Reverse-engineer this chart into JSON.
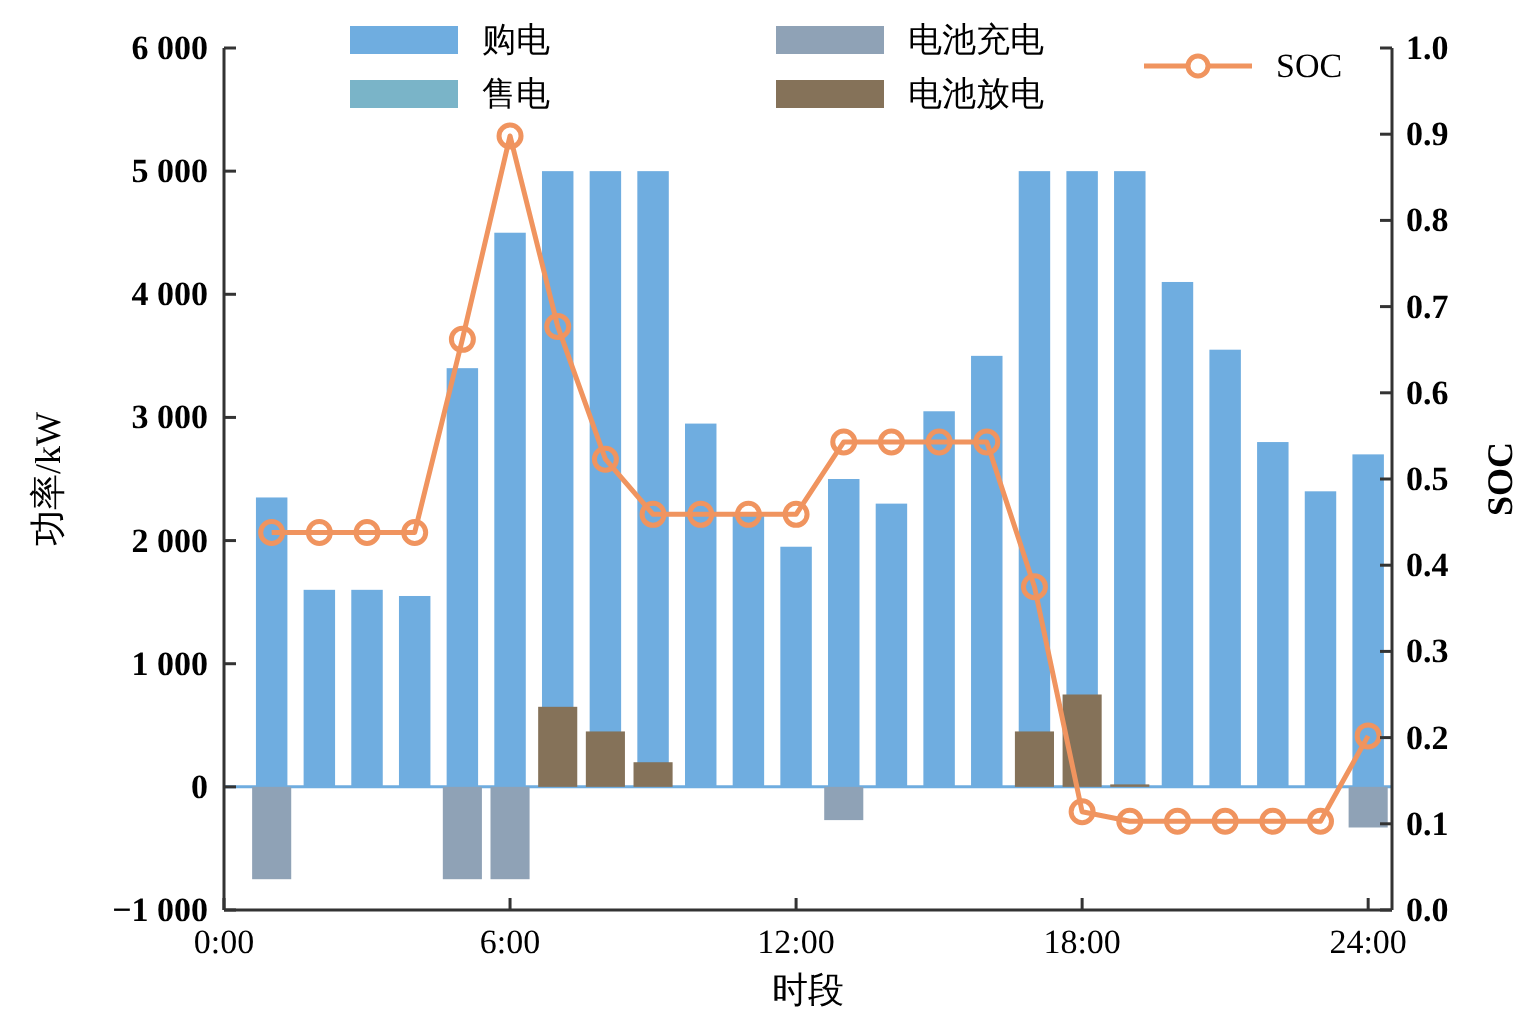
{
  "chart_data": {
    "type": "bar",
    "xlabel": "时段",
    "ylabel": "功率/kW",
    "y2label": "SOC",
    "x": [
      1,
      2,
      3,
      4,
      5,
      6,
      7,
      8,
      9,
      10,
      11,
      12,
      13,
      14,
      15,
      16,
      17,
      18,
      19,
      20,
      21,
      22,
      23,
      24
    ],
    "xlim": [
      0,
      24.5
    ],
    "xticks": [
      {
        "value": 0,
        "label": "0:00"
      },
      {
        "value": 6,
        "label": "6:00"
      },
      {
        "value": 12,
        "label": "12:00"
      },
      {
        "value": 18,
        "label": "18:00"
      },
      {
        "value": 24,
        "label": "24:00"
      }
    ],
    "ylim": [
      -1000,
      6000
    ],
    "yticks": [
      {
        "value": -1000,
        "label": "−1 000"
      },
      0,
      {
        "value": 1000,
        "label": "1 000"
      },
      {
        "value": 2000,
        "label": "2 000"
      },
      {
        "value": 3000,
        "label": "3 000"
      },
      {
        "value": 4000,
        "label": "4 000"
      },
      {
        "value": 5000,
        "label": "5 000"
      },
      {
        "value": 6000,
        "label": "6 000"
      }
    ],
    "y2lim": [
      0,
      1
    ],
    "y2ticks": [
      {
        "value": 0,
        "label": "0.0"
      },
      0.1,
      0.2,
      0.3,
      0.4,
      0.5,
      0.6,
      0.7,
      0.8,
      0.9,
      {
        "value": 1,
        "label": "1.0"
      }
    ],
    "series": [
      {
        "name": "购电",
        "color": "#6fade0",
        "values": [
          2350,
          1600,
          1600,
          1550,
          3400,
          4500,
          5000,
          5000,
          5000,
          2950,
          2200,
          1950,
          2500,
          2300,
          3050,
          3500,
          5000,
          5000,
          5000,
          4100,
          3550,
          2800,
          2400,
          2700
        ]
      },
      {
        "name": "售电",
        "color": "#7ab4c8",
        "values": [
          null,
          null,
          null,
          null,
          null,
          null,
          null,
          null,
          null,
          null,
          null,
          null,
          null,
          null,
          null,
          null,
          null,
          null,
          null,
          null,
          null,
          null,
          null,
          null
        ]
      },
      {
        "name": "电池充电",
        "color": "#8fa2b6",
        "values": [
          -750,
          null,
          null,
          null,
          -750,
          -750,
          null,
          null,
          null,
          null,
          null,
          null,
          -270,
          null,
          null,
          null,
          null,
          null,
          null,
          null,
          null,
          null,
          null,
          -330
        ]
      },
      {
        "name": "电池放电",
        "color": "#857259",
        "values": [
          null,
          null,
          null,
          null,
          null,
          null,
          650,
          450,
          200,
          null,
          null,
          null,
          null,
          null,
          null,
          null,
          450,
          750,
          20,
          null,
          null,
          null,
          null,
          null
        ]
      },
      {
        "name": "SOC",
        "type": "line",
        "axis": "y2",
        "color": "#f0945f",
        "marker": "circle",
        "values": [
          0.438,
          0.438,
          0.438,
          0.438,
          0.662,
          0.898,
          0.677,
          0.523,
          0.459,
          0.459,
          0.459,
          0.459,
          0.543,
          0.543,
          0.543,
          0.543,
          0.375,
          0.114,
          0.103,
          0.103,
          0.103,
          0.103,
          0.103,
          0.202
        ]
      }
    ],
    "ref_lines": [
      {
        "axis": "y",
        "value": 0,
        "color": "#6fade0"
      }
    ],
    "legend": "top"
  }
}
